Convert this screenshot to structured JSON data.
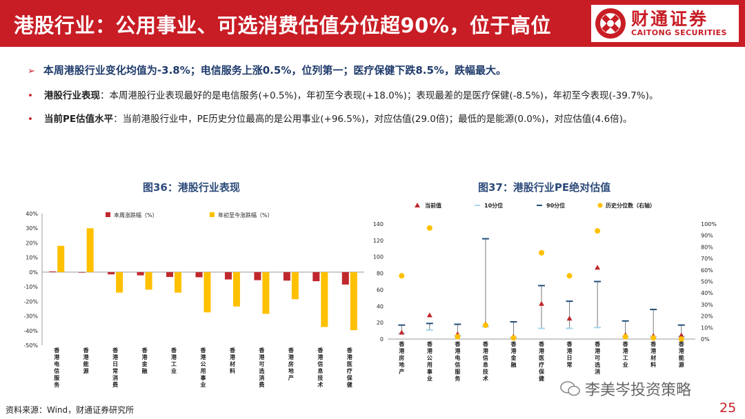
{
  "header": {
    "title": "港股行业：公用事业、可选消费估值分位超90%，位于高位",
    "logo_cn": "财通证券",
    "logo_en": "CAITONG SECURITIES"
  },
  "summary": {
    "headline": "本周港股行业变化均值为-3.8%；电信服务上涨0.5%，位列第一；医疗保健下跌8.5%，跌幅最大。",
    "b1_label": "港股行业表现",
    "b1_text": "：本周港股行业表现最好的是电信服务(+0.5%)，年初至今表现(+18.0%)；表现最差的是医疗保健(-8.5%)，年初至今表现(-39.7%)。",
    "b2_label": "当前PE估值水平",
    "b2_text": "：当前港股行业中，PE历史分位最高的是公用事业(+96.5%)，对应估值(29.0倍)；最低的是能源(0.0%)，对应估值(4.6倍)。"
  },
  "colors": {
    "brand": "#c81d25",
    "bar_weekly": "#c0282d",
    "bar_ytd": "#ffc000",
    "p10": "#a6d4ee",
    "p90": "#1f4e79",
    "hist": "#ffc000",
    "current": "#c0282d"
  },
  "chart_data": [
    {
      "type": "bar",
      "title": "图36：港股行业表现",
      "categories": [
        "香港电信服务",
        "香港能源",
        "香港日常消费",
        "香港金融",
        "香港工业",
        "香港公用事业",
        "香港材料",
        "香港可选消费",
        "香港房地产",
        "香港信息技术",
        "香港医疗保健"
      ],
      "series": [
        {
          "name": "本周涨跌幅（%）",
          "values": [
            0.5,
            0,
            -1.5,
            -2.2,
            -3.3,
            -3.5,
            -5.0,
            -5.5,
            -5.8,
            -6.2,
            -8.5
          ]
        },
        {
          "name": "年初至今涨跌幅（%）",
          "values": [
            18.0,
            30.0,
            -14.0,
            -12.0,
            -14.0,
            -27.5,
            -23.5,
            -28.5,
            -18.5,
            -37.5,
            -39.7
          ]
        }
      ],
      "yticks": [
        "40%",
        "30%",
        "20%",
        "10%",
        "0%",
        "-10%",
        "-20%",
        "-30%",
        "-40%",
        "-50%"
      ],
      "ylim": [
        -50,
        40
      ],
      "legend": "top"
    },
    {
      "type": "scatter",
      "title": "图37：港股行业PE绝对估值",
      "categories": [
        "香港房地产",
        "香港公用事业",
        "香港电信服务",
        "香港信息技术",
        "香港金融",
        "香港医疗保健",
        "香港日常",
        "香港可选消",
        "香港工业",
        "香港材料",
        "香港能源"
      ],
      "series": [
        {
          "name": "当前值",
          "values": [
            8,
            29,
            6,
            18,
            3,
            43,
            25,
            87,
            5,
            4,
            4.6
          ]
        },
        {
          "name": "10分位",
          "values": [
            7,
            11,
            4,
            15,
            2,
            13,
            13,
            14,
            3,
            3,
            3
          ]
        },
        {
          "name": "90分位",
          "values": [
            17,
            19,
            18,
            122,
            21,
            65,
            46,
            70,
            22,
            36,
            17
          ]
        },
        {
          "name": "历史分位数（右轴）",
          "values": [
            55,
            96.5,
            2,
            12,
            1,
            75,
            55,
            94,
            2,
            1,
            0
          ]
        }
      ],
      "yticks_left": [
        "140",
        "120",
        "100",
        "80",
        "60",
        "40",
        "20",
        "0"
      ],
      "yticks_right": [
        "100%",
        "90%",
        "80%",
        "70%",
        "60%",
        "50%",
        "40%",
        "30%",
        "20%",
        "10%",
        "0%"
      ],
      "ylim_left": [
        0,
        140
      ],
      "ylim_right": [
        0,
        100
      ],
      "legend": "top"
    }
  ],
  "footer": {
    "source": "资料来源：Wind，财通证券研究所",
    "watermark": "李美岑投资策略",
    "page": "25"
  }
}
